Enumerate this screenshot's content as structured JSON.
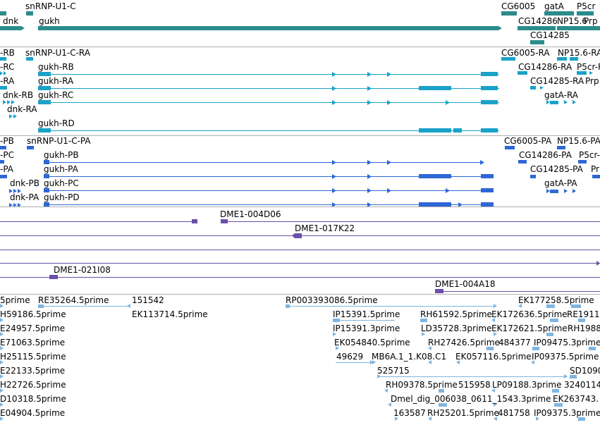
{
  "tracks": {
    "genes": {
      "features": [
        {
          "name": "snRNP-U1-C"
        },
        {
          "name": "dnk"
        },
        {
          "name": "gukh"
        },
        {
          "name": "CG6005"
        },
        {
          "name": "gatA"
        },
        {
          "name": "P5cr"
        },
        {
          "name": "CG14286"
        },
        {
          "name": "NP15.6"
        },
        {
          "name": "Prp"
        },
        {
          "name": "CG14285"
        }
      ]
    },
    "transcripts": {
      "features": [
        {
          "name": "-RB"
        },
        {
          "name": "snRNP-U1-C-RA"
        },
        {
          "name": "CG6005-RA"
        },
        {
          "name": "NP15.6-RA"
        },
        {
          "name": "-RC"
        },
        {
          "name": "gukh-RB"
        },
        {
          "name": "CG14286-RA"
        },
        {
          "name": "P5cr-RA"
        },
        {
          "name": "-RA"
        },
        {
          "name": "gukh-RA"
        },
        {
          "name": "CG14285-RA"
        },
        {
          "name": "Prp"
        },
        {
          "name": "dnk-RB"
        },
        {
          "name": "gukh-RC"
        },
        {
          "name": "gatA-RA"
        },
        {
          "name": "dnk-RA"
        },
        {
          "name": "gukh-RD"
        }
      ]
    },
    "proteins": {
      "features": [
        {
          "name": "-PB"
        },
        {
          "name": "snRNP-U1-C-PA"
        },
        {
          "name": "CG6005-PA"
        },
        {
          "name": "NP15.6-PA"
        },
        {
          "name": "-PC"
        },
        {
          "name": "gukh-PB"
        },
        {
          "name": "CG14286-PA"
        },
        {
          "name": "P5cr-"
        },
        {
          "name": "-PA"
        },
        {
          "name": "gukh-PA"
        },
        {
          "name": "CG14285-PA"
        },
        {
          "name": "Pr"
        },
        {
          "name": "dnk-PB"
        },
        {
          "name": "gukh-PC"
        },
        {
          "name": "gatA-PA"
        },
        {
          "name": "dnk-PA"
        },
        {
          "name": "gukh-PD"
        }
      ]
    },
    "clones": {
      "features": [
        {
          "name": "DME1-004D06"
        },
        {
          "name": "DME1-017K22"
        },
        {
          "name": "DME1-021I08"
        },
        {
          "name": "DME1-004A18"
        }
      ]
    },
    "ests": {
      "features": [
        {
          "name": "5prime"
        },
        {
          "name": "RE35264.5prime"
        },
        {
          "name": "151542"
        },
        {
          "name": "RP003393086.5prime"
        },
        {
          "name": "EK177258.5prime"
        },
        {
          "name": "H59186.5prime"
        },
        {
          "name": "EK113714.5prime"
        },
        {
          "name": "IP15391.5prime"
        },
        {
          "name": "RH61592.5prime"
        },
        {
          "name": "EK172636.5prime"
        },
        {
          "name": "RE1911"
        },
        {
          "name": "E24957.5prime"
        },
        {
          "name": "IP15391.3prime"
        },
        {
          "name": "LD35728.3prime"
        },
        {
          "name": "EK172621.5prime"
        },
        {
          "name": "RH1988"
        },
        {
          "name": "E71063.5prime"
        },
        {
          "name": "EK054840.5prime"
        },
        {
          "name": "RH27426.5prime"
        },
        {
          "name": "484377"
        },
        {
          "name": "IP09475.3prime"
        },
        {
          "name": "H25115.5prime"
        },
        {
          "name": "49629"
        },
        {
          "name": "MB6A.1_1.K08.C1"
        },
        {
          "name": "EK057116.5prime"
        },
        {
          "name": "IP09375.5prime"
        },
        {
          "name": "E22133.5prime"
        },
        {
          "name": "525715"
        },
        {
          "name": "SD1090"
        },
        {
          "name": "H22726.5prime"
        },
        {
          "name": "RH09378.5prime"
        },
        {
          "name": "515958"
        },
        {
          "name": "LP09188.3prime"
        },
        {
          "name": "3240114"
        },
        {
          "name": "D10318.5prime"
        },
        {
          "name": "Dmel_dig_006038_0611_1543.3prime"
        },
        {
          "name": "EK263743."
        },
        {
          "name": "E04904.5prime"
        },
        {
          "name": "163587"
        },
        {
          "name": "RH25201.5prime"
        },
        {
          "name": "481758"
        },
        {
          "name": "IP09375.3prime"
        }
      ]
    }
  },
  "colors": {
    "gene": "#2c8c8c",
    "transcript": "#1aa2c8",
    "protein": "#2e67d4",
    "clone": "#6b4fa8",
    "est": "#7fb5e0",
    "separator": "#b0b0b0"
  }
}
